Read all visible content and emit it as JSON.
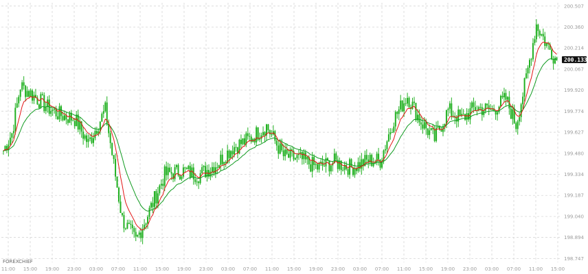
{
  "chart": {
    "watermark": "FOREXCHIEF",
    "current_price_label": "200.133"
  },
  "colors": {
    "grid": "#d6d6d6",
    "candle_up": "#20b020",
    "candle_down": "#20b020",
    "ma_fast": "#e21515",
    "ma_slow": "#0f9a1f",
    "price_tag_bg": "#111111",
    "axis_text": "#9c9c9c"
  },
  "chart_data": {
    "type": "candlestick",
    "title": "",
    "xlabel": "",
    "ylabel": "",
    "ylim": [
      198.72,
      200.53
    ],
    "grid": true,
    "legend": "none",
    "y_ticks": [
      "200.507",
      "200.360",
      "200.214",
      "200.067",
      "199.920",
      "199.774",
      "199.627",
      "199.480",
      "199.334",
      "199.187",
      "199.040",
      "198.894",
      "198.747"
    ],
    "x_ticks": [
      "11:00",
      "15:00",
      "19:00",
      "23:00",
      "03:00",
      "07:00",
      "11:00",
      "15:00",
      "19:00",
      "23:00",
      "03:00",
      "07:00",
      "11:00",
      "15:00",
      "19:00",
      "23:00",
      "03:00",
      "07:00",
      "11:00",
      "15:00",
      "19:00",
      "23:00",
      "03:00",
      "07:00",
      "11:00",
      "15:00"
    ],
    "close_anchors": [
      {
        "bar": 0,
        "price": 199.5
      },
      {
        "bar": 5,
        "price": 199.62
      },
      {
        "bar": 10,
        "price": 199.95
      },
      {
        "bar": 18,
        "price": 199.88
      },
      {
        "bar": 26,
        "price": 199.8
      },
      {
        "bar": 33,
        "price": 199.75
      },
      {
        "bar": 42,
        "price": 199.72
      },
      {
        "bar": 50,
        "price": 199.55
      },
      {
        "bar": 60,
        "price": 199.78
      },
      {
        "bar": 70,
        "price": 199.02
      },
      {
        "bar": 78,
        "price": 198.87
      },
      {
        "bar": 85,
        "price": 199.05
      },
      {
        "bar": 95,
        "price": 199.33
      },
      {
        "bar": 105,
        "price": 199.36
      },
      {
        "bar": 115,
        "price": 199.33
      },
      {
        "bar": 125,
        "price": 199.4
      },
      {
        "bar": 135,
        "price": 199.52
      },
      {
        "bar": 145,
        "price": 199.58
      },
      {
        "bar": 155,
        "price": 199.67
      },
      {
        "bar": 165,
        "price": 199.46
      },
      {
        "bar": 175,
        "price": 199.44
      },
      {
        "bar": 185,
        "price": 199.38
      },
      {
        "bar": 195,
        "price": 199.42
      },
      {
        "bar": 205,
        "price": 199.38
      },
      {
        "bar": 215,
        "price": 199.43
      },
      {
        "bar": 222,
        "price": 199.43
      },
      {
        "bar": 230,
        "price": 199.72
      },
      {
        "bar": 238,
        "price": 199.88
      },
      {
        "bar": 246,
        "price": 199.7
      },
      {
        "bar": 254,
        "price": 199.58
      },
      {
        "bar": 262,
        "price": 199.78
      },
      {
        "bar": 270,
        "price": 199.72
      },
      {
        "bar": 278,
        "price": 199.8
      },
      {
        "bar": 288,
        "price": 199.78
      },
      {
        "bar": 296,
        "price": 199.86
      },
      {
        "bar": 302,
        "price": 199.68
      },
      {
        "bar": 308,
        "price": 200.0
      },
      {
        "bar": 314,
        "price": 200.38
      },
      {
        "bar": 320,
        "price": 200.24
      },
      {
        "bar": 326,
        "price": 200.13
      }
    ],
    "ma_fast_period": 8,
    "ma_slow_period": 21
  }
}
